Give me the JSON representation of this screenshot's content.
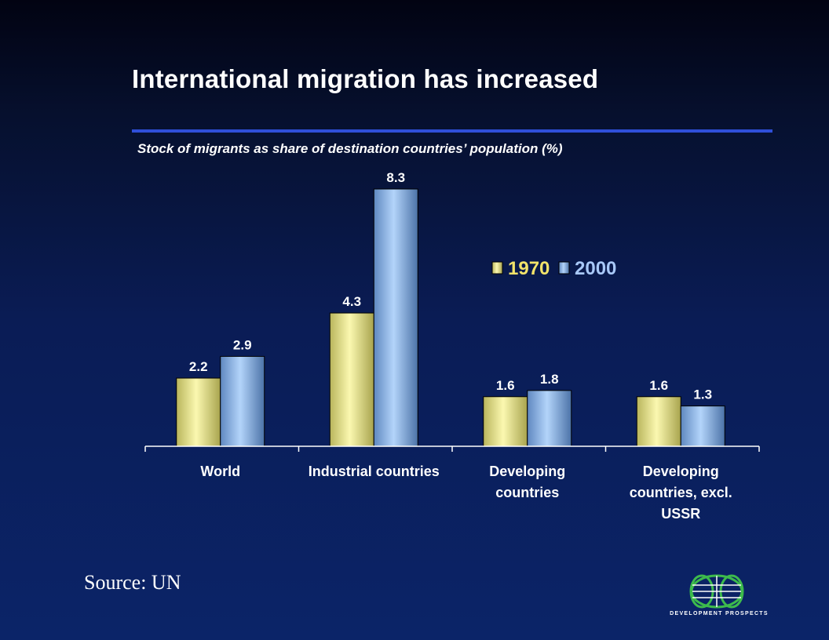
{
  "title": "International migration has increased",
  "chart_data": {
    "type": "bar",
    "title": "Stock of migrants as share of destination countries’ population (%)",
    "categories": [
      [
        "World"
      ],
      [
        "Industrial countries"
      ],
      [
        "Developing",
        "countries"
      ],
      [
        "Developing",
        "countries, excl.",
        "USSR"
      ]
    ],
    "series": [
      {
        "name": "1970",
        "values": [
          2.2,
          4.3,
          1.6,
          1.6
        ],
        "color": "#f6f2a0",
        "legend_color": "#f2e36a"
      },
      {
        "name": "2000",
        "values": [
          2.9,
          8.3,
          1.8,
          1.3
        ],
        "color": "#9ec6f2",
        "legend_color": "#a8c8f8"
      }
    ],
    "value_labels": [
      "2.2",
      "4.3",
      "1.6",
      "1.6",
      "2.9",
      "8.3",
      "1.8",
      "1.3"
    ],
    "ylim": [
      0,
      8.3
    ],
    "grid": false,
    "legend_position": "top-right"
  },
  "source": "Source: UN",
  "logo": {
    "text": "DEVELOPMENT PROSPECTS",
    "icon": "globe-icon"
  }
}
